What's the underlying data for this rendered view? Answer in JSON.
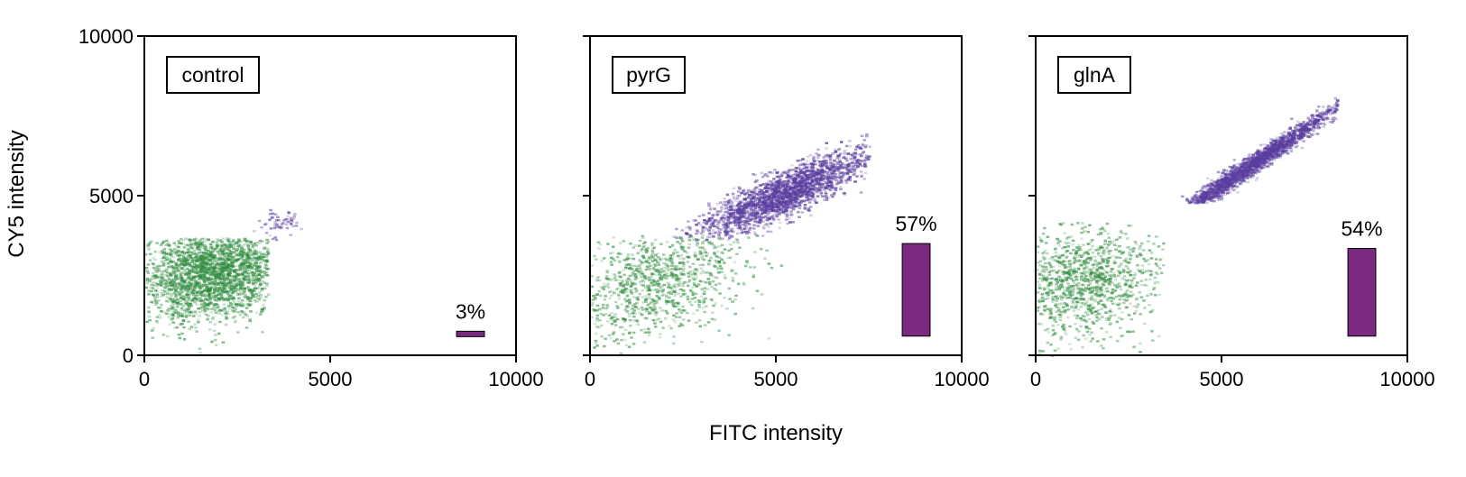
{
  "figure": {
    "xlabel": "FITC intensity",
    "ylabel": "CY5 intensity"
  },
  "chart_data": [
    {
      "type": "scatter",
      "panel": "control",
      "xlim": [
        0,
        10000
      ],
      "ylim": [
        0,
        10000
      ],
      "xticks": [
        "0",
        "5000",
        "10000"
      ],
      "yticks": [
        "0",
        "5000",
        "10000"
      ],
      "percent_label": "3%",
      "percent_value": 3,
      "colors": {
        "positive": "#5a3d9e",
        "negative": "#2e8b3e",
        "bar": "#7b2a82"
      },
      "clusters": [
        {
          "series": "negative",
          "cx": 1800,
          "cy": 2600,
          "sx": 1000,
          "sy": 750,
          "rho": 0.2,
          "n": 2600,
          "xmin": 0,
          "xmax": 3300,
          "ymin": 0,
          "ymax": 3700
        },
        {
          "series": "positive",
          "cx": 3600,
          "cy": 4200,
          "sx": 350,
          "sy": 250,
          "rho": 0.5,
          "n": 70,
          "xmin": 2900,
          "xmax": 4400,
          "ymin": 3600,
          "ymax": 4700
        }
      ]
    },
    {
      "type": "scatter",
      "panel": "pyrG",
      "xlim": [
        0,
        10000
      ],
      "ylim": [
        0,
        10000
      ],
      "xticks": [
        "0",
        "5000",
        "10000"
      ],
      "yticks": [
        "",
        "",
        ""
      ],
      "percent_label": "57%",
      "percent_value": 57,
      "colors": {
        "positive": "#5a3d9e",
        "negative": "#2e8b3e",
        "bar": "#7b2a82"
      },
      "clusters": [
        {
          "series": "negative",
          "cx": 1700,
          "cy": 2300,
          "sx": 1200,
          "sy": 900,
          "rho": 0.35,
          "n": 1100,
          "xmin": 0,
          "xmax": 5800,
          "ymin": 0,
          "ymax": 3800
        },
        {
          "series": "positive",
          "cx": 5200,
          "cy": 5100,
          "sx": 1100,
          "sy": 650,
          "rho": 0.85,
          "n": 2400,
          "xmin": 2200,
          "xmax": 7500,
          "ymin": 3600,
          "ymax": 7000
        }
      ]
    },
    {
      "type": "scatter",
      "panel": "glnA",
      "xlim": [
        0,
        10000
      ],
      "ylim": [
        0,
        10000
      ],
      "xticks": [
        "0",
        "5000",
        "10000"
      ],
      "yticks": [
        "",
        "",
        ""
      ],
      "percent_label": "54%",
      "percent_value": 54,
      "colors": {
        "positive": "#5a3d9e",
        "negative": "#2e8b3e",
        "bar": "#7b2a82"
      },
      "clusters": [
        {
          "series": "negative",
          "cx": 1300,
          "cy": 2300,
          "sx": 1000,
          "sy": 850,
          "rho": 0.15,
          "n": 1200,
          "xmin": 0,
          "xmax": 3400,
          "ymin": 0,
          "ymax": 4200
        },
        {
          "series": "positive",
          "cx": 5800,
          "cy": 6000,
          "sx": 1200,
          "sy": 950,
          "rho": 0.985,
          "n": 2200,
          "xmin": 3200,
          "xmax": 8100,
          "ymin": 4800,
          "ymax": 8400
        }
      ]
    }
  ]
}
